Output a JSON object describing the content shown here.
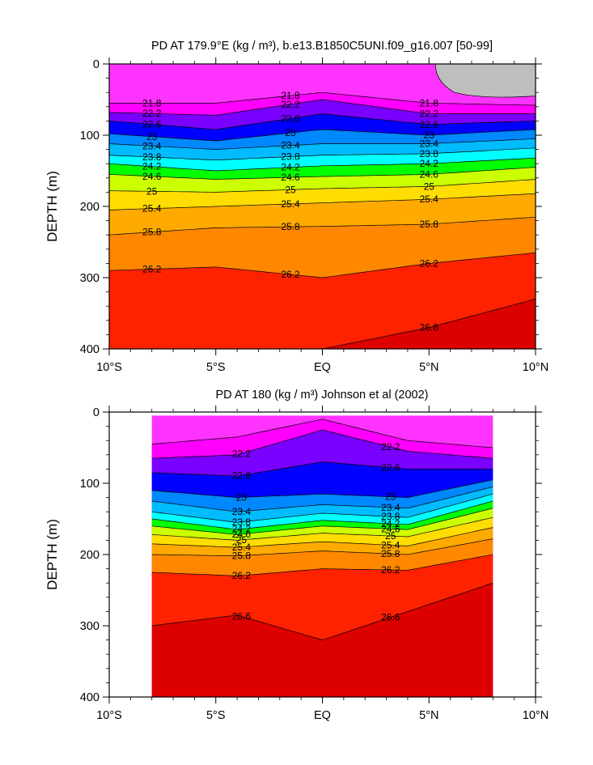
{
  "chart_data": [
    {
      "type": "heatmap",
      "title": "PD AT 179.9°E (kg / m³), b.e13.B1850C5UNI.f09_g16.007 [50-99]",
      "xlabel": "",
      "ylabel": "DEPTH (m)",
      "xlim": [
        -10,
        10
      ],
      "ylim": [
        400,
        0
      ],
      "y_inverted": true,
      "x_ticks": [
        -10,
        -5,
        0,
        5,
        10
      ],
      "x_tick_labels": [
        "10°S",
        "5°S",
        "EQ",
        "5°N",
        "10°N"
      ],
      "y_ticks": [
        0,
        100,
        200,
        300,
        400
      ],
      "y_tick_labels": [
        "0",
        "100",
        "200",
        "300",
        "400"
      ],
      "data_extent_x": [
        -10,
        10
      ],
      "missing_region": "top-right corner (≈6°N–10°N, 0–45 m) shown in grey",
      "contour_interval": 0.2,
      "isopycnal_depths": {
        "x": [
          -10,
          -5,
          0,
          5,
          10
        ],
        "levels": [
          {
            "value": 21.8,
            "depths": [
              55,
              55,
              40,
              55,
              58
            ]
          },
          {
            "value": 22.2,
            "depths": [
              68,
              72,
              50,
              70,
              70
            ]
          },
          {
            "value": 22.6,
            "depths": [
              80,
              92,
              70,
              85,
              80
            ]
          },
          {
            "value": 23.0,
            "depths": [
              98,
              108,
              92,
              100,
              92
            ]
          },
          {
            "value": 23.4,
            "depths": [
              112,
              120,
              112,
              112,
              105
            ]
          },
          {
            "value": 23.8,
            "depths": [
              128,
              135,
              128,
              126,
              118
            ]
          },
          {
            "value": 24.2,
            "depths": [
              140,
              150,
              143,
              140,
              132
            ]
          },
          {
            "value": 24.6,
            "depths": [
              155,
              162,
              158,
              155,
              145
            ]
          },
          {
            "value": 25.0,
            "depths": [
              178,
              180,
              175,
              172,
              162
            ]
          },
          {
            "value": 25.4,
            "depths": [
              205,
              200,
              195,
              190,
              182
            ]
          },
          {
            "value": 25.8,
            "depths": [
              240,
              230,
              228,
              225,
              215
            ]
          },
          {
            "value": 26.2,
            "depths": [
              290,
              285,
              300,
              280,
              265
            ]
          },
          {
            "value": 26.6,
            "depths": [
              405,
              400,
              400,
              370,
              330
            ]
          }
        ]
      },
      "contour_labels": [
        "21.8",
        "22.2",
        "22.6",
        "23",
        "23.4",
        "23.8",
        "24.2",
        "24.6",
        "25",
        "25.4",
        "25.8",
        "26.2",
        "26.6"
      ]
    },
    {
      "type": "heatmap",
      "title": "PD AT 180 (kg / m³) Johnson et al (2002)",
      "xlabel": "",
      "ylabel": "DEPTH (m)",
      "xlim": [
        -10,
        10
      ],
      "ylim": [
        400,
        0
      ],
      "y_inverted": true,
      "x_ticks": [
        -10,
        -5,
        0,
        5,
        10
      ],
      "x_tick_labels": [
        "10°S",
        "5°S",
        "EQ",
        "5°N",
        "10°N"
      ],
      "y_ticks": [
        0,
        100,
        200,
        300,
        400
      ],
      "y_tick_labels": [
        "0",
        "100",
        "200",
        "300",
        "400"
      ],
      "data_extent_x": [
        -8,
        8
      ],
      "data_extent_y": [
        5,
        400
      ],
      "contour_interval": 0.2,
      "isopycnal_depths": {
        "x": [
          -8,
          -4,
          0,
          4,
          8
        ],
        "levels": [
          {
            "value": 21.8,
            "depths": [
              45,
              35,
              10,
              40,
              50
            ]
          },
          {
            "value": 22.2,
            "depths": [
              65,
              60,
              25,
              55,
              65
            ]
          },
          {
            "value": 22.6,
            "depths": [
              85,
              90,
              70,
              80,
              80
            ]
          },
          {
            "value": 23.0,
            "depths": [
              110,
              120,
              115,
              120,
              95
            ]
          },
          {
            "value": 23.4,
            "depths": [
              125,
              140,
              130,
              135,
              105
            ]
          },
          {
            "value": 23.8,
            "depths": [
              140,
              155,
              142,
              148,
              115
            ]
          },
          {
            "value": 24.2,
            "depths": [
              150,
              165,
              152,
              158,
              125
            ]
          },
          {
            "value": 24.6,
            "depths": [
              160,
              172,
              160,
              165,
              135
            ]
          },
          {
            "value": 25.0,
            "depths": [
              172,
              180,
              170,
              175,
              148
            ]
          },
          {
            "value": 25.4,
            "depths": [
              185,
              190,
              182,
              188,
              162
            ]
          },
          {
            "value": 25.8,
            "depths": [
              200,
              202,
              195,
              200,
              178
            ]
          },
          {
            "value": 26.2,
            "depths": [
              225,
              230,
              220,
              222,
              200
            ]
          },
          {
            "value": 26.6,
            "depths": [
              300,
              285,
              320,
              280,
              240
            ]
          }
        ]
      },
      "contour_labels": [
        "22.2",
        "22.6",
        "23",
        "23.4",
        "23.8",
        "24.2",
        "24.6",
        "25",
        "25.4",
        "25.8",
        "26.2",
        "26.6"
      ]
    }
  ],
  "colors": {
    "magenta": "#ff00ff",
    "purple": "#9900ff",
    "blue": "#0000ff",
    "cyan": "#00ffff",
    "green": "#00ff00",
    "yellow": "#ffff00",
    "orange": "#ff8800",
    "red": "#ee0000",
    "dark_red": "#c00000",
    "missing_grey": "#bebebe",
    "background": "#ffffff"
  }
}
